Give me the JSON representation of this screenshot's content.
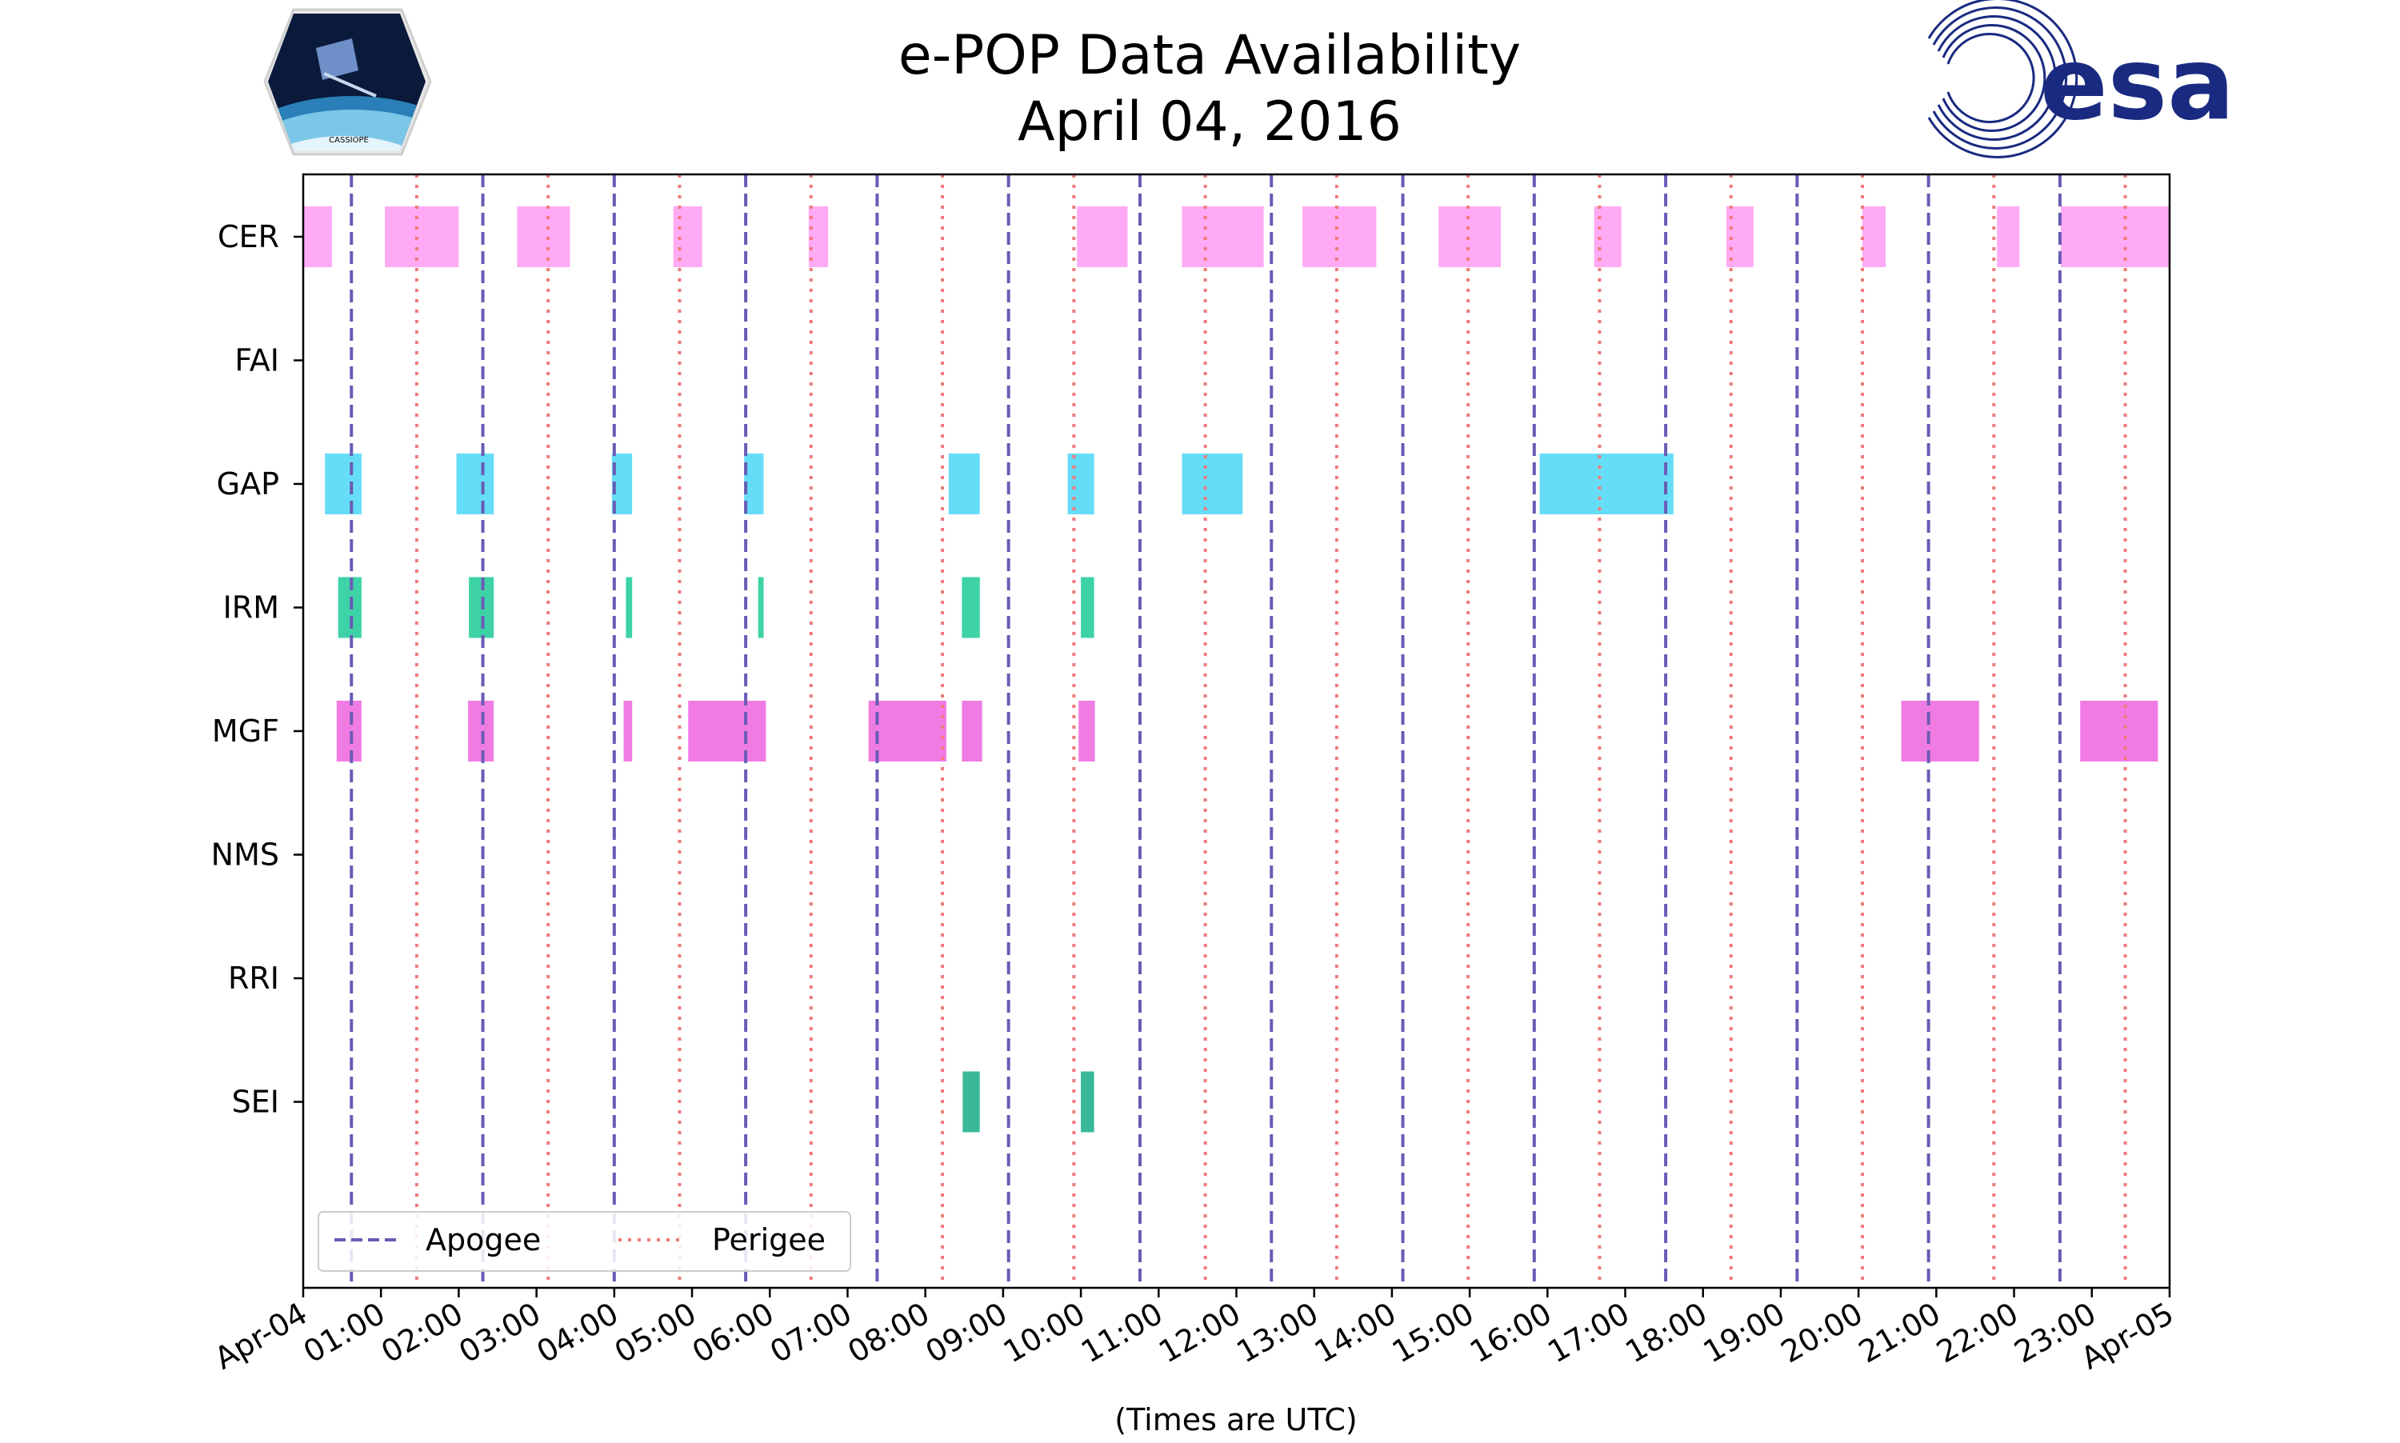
{
  "chart_data": {
    "type": "timeline",
    "title": [
      "e-POP Data Availability",
      "April 04, 2016"
    ],
    "xlabel": "(Times are UTC)",
    "xlim_hours": [
      0,
      24
    ],
    "xtick_labels": [
      "Apr-04",
      "01:00",
      "02:00",
      "03:00",
      "04:00",
      "05:00",
      "06:00",
      "07:00",
      "08:00",
      "09:00",
      "10:00",
      "11:00",
      "12:00",
      "13:00",
      "14:00",
      "15:00",
      "16:00",
      "17:00",
      "18:00",
      "19:00",
      "20:00",
      "21:00",
      "22:00",
      "23:00",
      "Apr-05"
    ],
    "instruments": [
      "CER",
      "FAI",
      "GAP",
      "IRM",
      "MGF",
      "NMS",
      "RRI",
      "SEI"
    ],
    "apogee_hours": [
      0.62,
      2.31,
      4.0,
      5.69,
      7.38,
      9.07,
      10.76,
      12.45,
      14.14,
      15.83,
      17.52,
      19.21,
      20.9,
      22.59
    ],
    "perigee_hours": [
      1.46,
      3.15,
      4.84,
      6.53,
      8.22,
      9.91,
      11.6,
      13.29,
      14.98,
      16.67,
      18.36,
      20.05,
      21.74,
      23.43
    ],
    "series": [
      {
        "name": "CER",
        "color": "#ffaaf5",
        "intervals": [
          [
            0.0,
            0.37
          ],
          [
            1.05,
            2.0
          ],
          [
            2.75,
            3.43
          ],
          [
            4.76,
            5.13
          ],
          [
            6.5,
            6.75
          ],
          [
            9.95,
            10.6
          ],
          [
            11.3,
            12.35
          ],
          [
            12.85,
            13.8
          ],
          [
            14.6,
            15.4
          ],
          [
            16.6,
            16.95
          ],
          [
            18.3,
            18.65
          ],
          [
            20.05,
            20.35
          ],
          [
            21.78,
            22.07
          ],
          [
            22.6,
            24.0
          ]
        ]
      },
      {
        "name": "FAI",
        "color": "#ffaaf5",
        "intervals": []
      },
      {
        "name": "GAP",
        "color": "#66ddf7",
        "intervals": [
          [
            0.28,
            0.75
          ],
          [
            1.97,
            2.45
          ],
          [
            3.97,
            4.23
          ],
          [
            5.67,
            5.92
          ],
          [
            8.3,
            8.7
          ],
          [
            9.83,
            10.17
          ],
          [
            11.3,
            12.08
          ],
          [
            15.9,
            17.62
          ]
        ]
      },
      {
        "name": "IRM",
        "color": "#3ed3a6",
        "intervals": [
          [
            0.45,
            0.75
          ],
          [
            2.13,
            2.45
          ],
          [
            4.15,
            4.23
          ],
          [
            5.85,
            5.92
          ],
          [
            8.47,
            8.7
          ],
          [
            10.0,
            10.17
          ]
        ]
      },
      {
        "name": "MGF",
        "color": "#f07ce3",
        "intervals": [
          [
            0.43,
            0.75
          ],
          [
            2.12,
            2.45
          ],
          [
            4.12,
            4.23
          ],
          [
            4.95,
            5.95
          ],
          [
            7.27,
            8.27
          ],
          [
            8.47,
            8.73
          ],
          [
            9.97,
            10.18
          ],
          [
            20.55,
            21.55
          ],
          [
            22.85,
            23.85
          ]
        ]
      },
      {
        "name": "NMS",
        "color": "#f07ce3",
        "intervals": []
      },
      {
        "name": "RRI",
        "color": "#f07ce3",
        "intervals": []
      },
      {
        "name": "SEI",
        "color": "#3ab998",
        "intervals": [
          [
            8.48,
            8.7
          ],
          [
            10.0,
            10.17
          ]
        ]
      }
    ],
    "legend": {
      "position": "lower-left",
      "entries": [
        {
          "label": "Apogee",
          "style": "dashed",
          "color": "#6a5bb5"
        },
        {
          "label": "Perigee",
          "style": "dotted",
          "color": "#f07a7a"
        }
      ]
    }
  },
  "logos": {
    "cassiope_text": "CASSIOPE",
    "esa_text": "esa"
  },
  "colors": {
    "apogee": "#6a5bb5",
    "perigee": "#f07a7a",
    "esa_blue": "#1a2a80",
    "axis": "#000000"
  }
}
